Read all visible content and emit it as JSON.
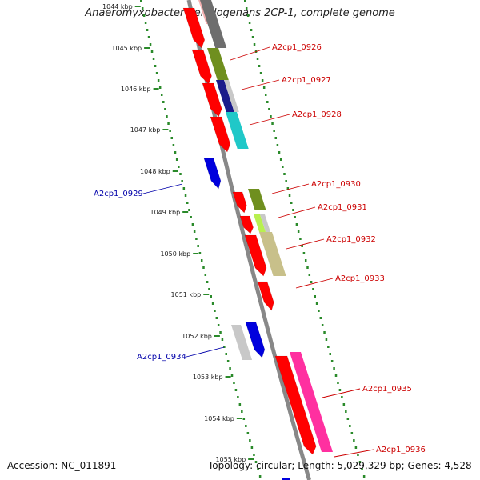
{
  "header": {
    "title": "Anaeromyxobacter dehalogenans 2CP-1, complete genome"
  },
  "footer": {
    "accession_label": "Accession:",
    "accession": "NC_011891",
    "topology_label": "Topology:",
    "topology": "circular",
    "length_label": "Length:",
    "length": "5,029,329 bp",
    "genes_label": "Genes:",
    "genes": "4,528"
  },
  "colors": {
    "forward_label": "#cc0000",
    "reverse_label": "#0000aa",
    "backbone": "#888888",
    "tick_forward": "#228822",
    "tick_reverse": "#228822"
  },
  "scale_ticks": [
    {
      "label": "1044 kbp"
    },
    {
      "label": "1045 kbp"
    },
    {
      "label": "1046 kbp"
    },
    {
      "label": "1047 kbp"
    },
    {
      "label": "1048 kbp"
    },
    {
      "label": "1049 kbp"
    },
    {
      "label": "1050 kbp"
    },
    {
      "label": "1051 kbp"
    },
    {
      "label": "1052 kbp"
    },
    {
      "label": "1053 kbp"
    },
    {
      "label": "1054 kbp"
    },
    {
      "label": "1055 kbp"
    }
  ],
  "gene_labels": [
    {
      "id": "A2cp1_0926",
      "strand": "forward"
    },
    {
      "id": "A2cp1_0927",
      "strand": "forward"
    },
    {
      "id": "A2cp1_0928",
      "strand": "forward"
    },
    {
      "id": "A2cp1_0929",
      "strand": "reverse"
    },
    {
      "id": "A2cp1_0930",
      "strand": "forward"
    },
    {
      "id": "A2cp1_0931",
      "strand": "forward"
    },
    {
      "id": "A2cp1_0932",
      "strand": "forward"
    },
    {
      "id": "A2cp1_0933",
      "strand": "forward"
    },
    {
      "id": "A2cp1_0934",
      "strand": "reverse"
    },
    {
      "id": "A2cp1_0935",
      "strand": "forward"
    },
    {
      "id": "A2cp1_0936",
      "strand": "forward"
    }
  ]
}
